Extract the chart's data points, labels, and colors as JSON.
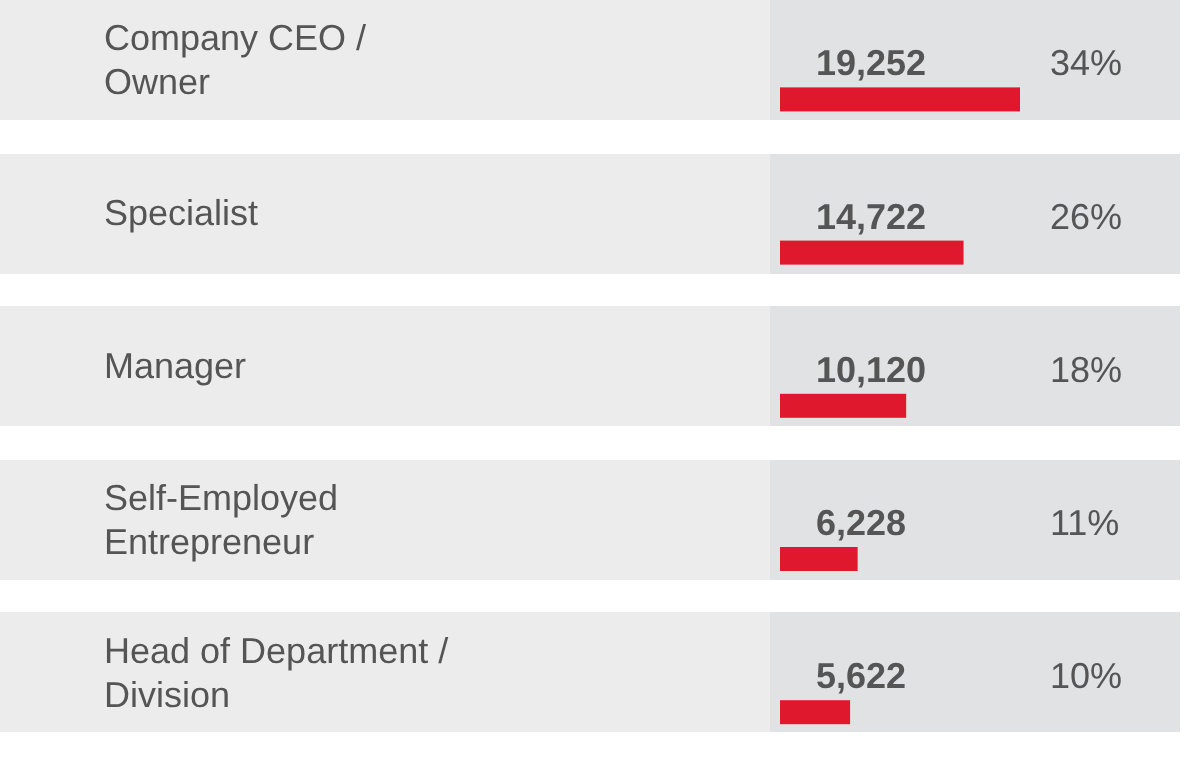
{
  "chart_data": {
    "type": "bar",
    "orientation": "horizontal",
    "categories": [
      "Company CEO /\nOwner",
      "Specialist",
      "Manager",
      "Self-Employed\nEntrepreneur",
      "Head of Department /\nDivision"
    ],
    "values": [
      19252,
      14722,
      10120,
      6228,
      5622
    ],
    "value_labels": [
      "19,252",
      "14,722",
      "10,120",
      "6,228",
      "5,622"
    ],
    "annotations": [
      "34%",
      "26%",
      "18%",
      "11%",
      "10%"
    ],
    "color": "#e0182d"
  }
}
